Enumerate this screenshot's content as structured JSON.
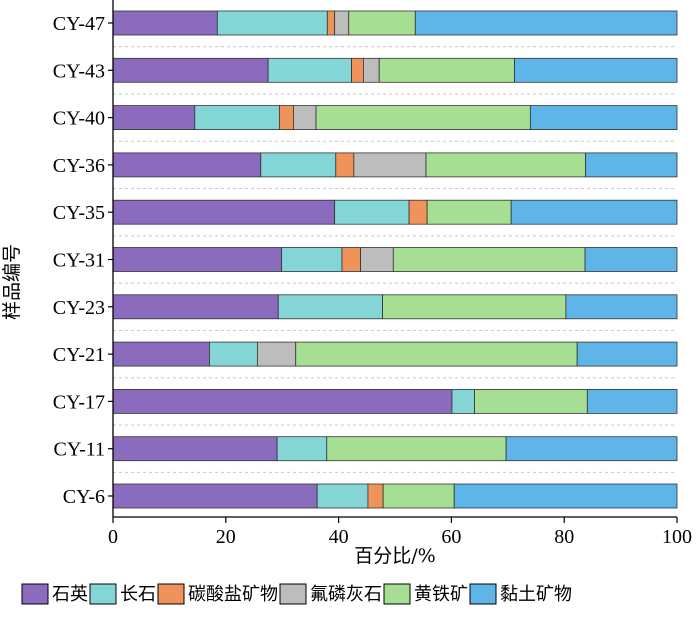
{
  "chart_data": {
    "type": "bar",
    "orientation": "horizontal",
    "stacked": true,
    "xlabel": "百分比/%",
    "ylabel": "样品编号",
    "xlim": [
      0,
      100
    ],
    "xticks": [
      0,
      20,
      40,
      60,
      80,
      100
    ],
    "grid": "horizontal dashed",
    "legend_position": "bottom",
    "categories": [
      "CY-47",
      "CY-43",
      "CY-40",
      "CY-36",
      "CY-35",
      "CY-31",
      "CY-23",
      "CY-21",
      "CY-17",
      "CY-11",
      "CY-6"
    ],
    "series": [
      {
        "name": "石英",
        "color": "#8B6BBE",
        "values": [
          18.5,
          27.5,
          14.5,
          26.2,
          39.3,
          29.9,
          29.3,
          17.1,
          60.1,
          29.1,
          36.2
        ]
      },
      {
        "name": "长石",
        "color": "#84D6D6",
        "values": [
          19.5,
          14.8,
          15.0,
          13.3,
          13.2,
          10.7,
          18.5,
          8.5,
          4.0,
          8.8,
          9.0
        ]
      },
      {
        "name": "碳酸盐矿物",
        "color": "#F0935A",
        "values": [
          1.3,
          2.1,
          2.5,
          3.2,
          3.2,
          3.3,
          0,
          0,
          0,
          0,
          2.7
        ]
      },
      {
        "name": "氟磷灰石",
        "color": "#BDBDBD",
        "values": [
          2.5,
          2.8,
          4.0,
          12.8,
          0,
          5.8,
          0,
          6.8,
          0,
          0,
          0
        ]
      },
      {
        "name": "黄铁矿",
        "color": "#A6DE93",
        "values": [
          11.8,
          24.0,
          38.0,
          28.3,
          14.9,
          34.0,
          32.5,
          49.9,
          20.0,
          31.8,
          12.6
        ]
      },
      {
        "name": "黏土矿物",
        "color": "#5FB4E8",
        "values": [
          46.4,
          28.8,
          26.0,
          16.2,
          29.4,
          16.3,
          19.7,
          17.7,
          15.9,
          30.3,
          39.5
        ]
      }
    ]
  }
}
